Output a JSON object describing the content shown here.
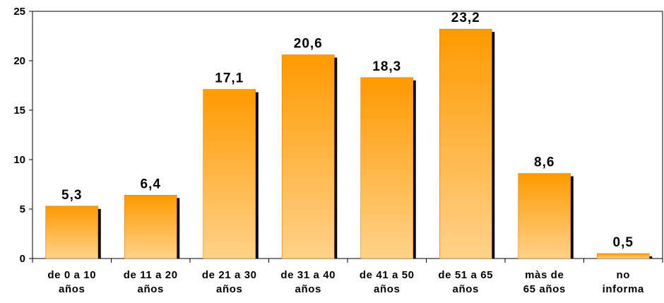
{
  "chart_data": {
    "type": "bar",
    "categories": [
      [
        "de 0 a 10",
        "años"
      ],
      [
        "de 11 a 20",
        "años"
      ],
      [
        "de 21 a 30",
        "años"
      ],
      [
        "de 31 a 40",
        "años"
      ],
      [
        "de 41 a 50",
        "años"
      ],
      [
        "de 51 a 65",
        "años"
      ],
      [
        "màs de",
        "65 años"
      ],
      [
        "no",
        "informa"
      ]
    ],
    "values": [
      5.3,
      6.4,
      17.1,
      20.6,
      18.3,
      23.2,
      8.6,
      0.5
    ],
    "data_labels": [
      "5,3",
      "6,4",
      "17,1",
      "20,6",
      "18,3",
      "23,2",
      "8,6",
      "0,5"
    ],
    "ylim": [
      0,
      25
    ],
    "yticks": [
      0,
      5,
      10,
      15,
      20,
      25
    ],
    "grid": false,
    "colors": {
      "bar_top": "#ff9a00",
      "bar_bottom": "#ffd28a",
      "bar_shadow": "#000000",
      "axis": "#000000"
    }
  }
}
